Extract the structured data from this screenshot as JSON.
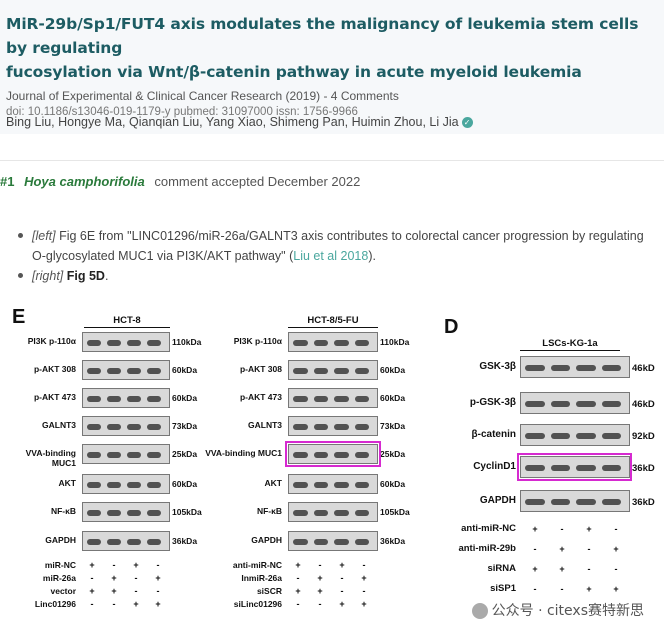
{
  "header": {
    "title_line1": "MiR-29b/Sp1/FUT4 axis modulates the malignancy of leukemia stem cells by regulating",
    "title_line2": "fucosylation via Wnt/β-catenin pathway in acute myeloid leukemia",
    "journal": "Journal of Experimental & Clinical Cancer Research (2019) - 4 Comments",
    "doi": "doi: 10.1186/s13046-019-1179-y  pubmed: 31097000  issn: 1756-9966",
    "authors": "Bing Liu, Hongye Ma, Qianqian Liu, Yang Xiao, Shimeng Pan, Huimin Zhou, Li Jia",
    "verified_icon": "verified-check-icon"
  },
  "comment": {
    "number": "#1",
    "species": "Hoya camphorifolia",
    "status": "comment accepted December 2022"
  },
  "refs": [
    {
      "tag": "[left]",
      "text_a": " Fig 6E from \"LINC01296/miR-26a/GALNT3 axis contributes to colorectal cancer progression by regulating O-glycosylated MUC1 via PI3K/AKT pathway\" (",
      "link": "Liu et al 2018",
      "text_b": ")."
    },
    {
      "tag": "[right]",
      "text_a": " ",
      "bold": "Fig 5D",
      "text_b": "."
    }
  ],
  "figure": {
    "E": {
      "label": "E",
      "rows": [
        "PI3K p-110α",
        "p-AKT 308",
        "p-AKT 473",
        "GALNT3",
        "VVA-binding MUC1",
        "AKT",
        "NF-κB",
        "GAPDH"
      ],
      "kda": [
        "110kDa",
        "60kDa",
        "60kDa",
        "73kDa",
        "25kDa",
        "60kDa",
        "105kDa",
        "36kDa"
      ],
      "panel1": {
        "title": "HCT-8",
        "conditions": [
          {
            "label": "miR-NC",
            "signs": [
              "+",
              "-",
              "+",
              "-"
            ]
          },
          {
            "label": "miR-26a",
            "signs": [
              "-",
              "+",
              "-",
              "+"
            ]
          },
          {
            "label": "vector",
            "signs": [
              "+",
              "+",
              "-",
              "-"
            ]
          },
          {
            "label": "Linc01296",
            "signs": [
              "-",
              "-",
              "+",
              "+"
            ]
          }
        ]
      },
      "panel2": {
        "title": "HCT-8/5-FU",
        "conditions": [
          {
            "label": "anti-miR-NC",
            "signs": [
              "+",
              "-",
              "+",
              "-"
            ]
          },
          {
            "label": "InmiR-26a",
            "signs": [
              "-",
              "+",
              "-",
              "+"
            ]
          },
          {
            "label": "siSCR",
            "signs": [
              "+",
              "+",
              "-",
              "-"
            ]
          },
          {
            "label": "siLinc01296",
            "signs": [
              "-",
              "-",
              "+",
              "+"
            ]
          }
        ]
      }
    },
    "D": {
      "label": "D",
      "title": "LSCs-KG-1a",
      "rows": [
        "GSK-3β",
        "p-GSK-3β",
        "β-catenin",
        "CyclinD1",
        "GAPDH"
      ],
      "kda": [
        "46kD",
        "46kD",
        "92kD",
        "36kD",
        "36kD"
      ],
      "conditions": [
        {
          "label": "anti-miR-NC",
          "signs": [
            "+",
            "-",
            "+",
            "-"
          ]
        },
        {
          "label": "anti-miR-29b",
          "signs": [
            "-",
            "+",
            "-",
            "+"
          ]
        },
        {
          "label": "siRNA",
          "signs": [
            "+",
            "+",
            "-",
            "-"
          ]
        },
        {
          "label": "siSP1",
          "signs": [
            "-",
            "-",
            "+",
            "+"
          ]
        }
      ]
    },
    "watermark": "公众号 · citexs赛特新思",
    "watermark_icon": "wechat-icon",
    "highlight_color": "#d62ad0"
  }
}
